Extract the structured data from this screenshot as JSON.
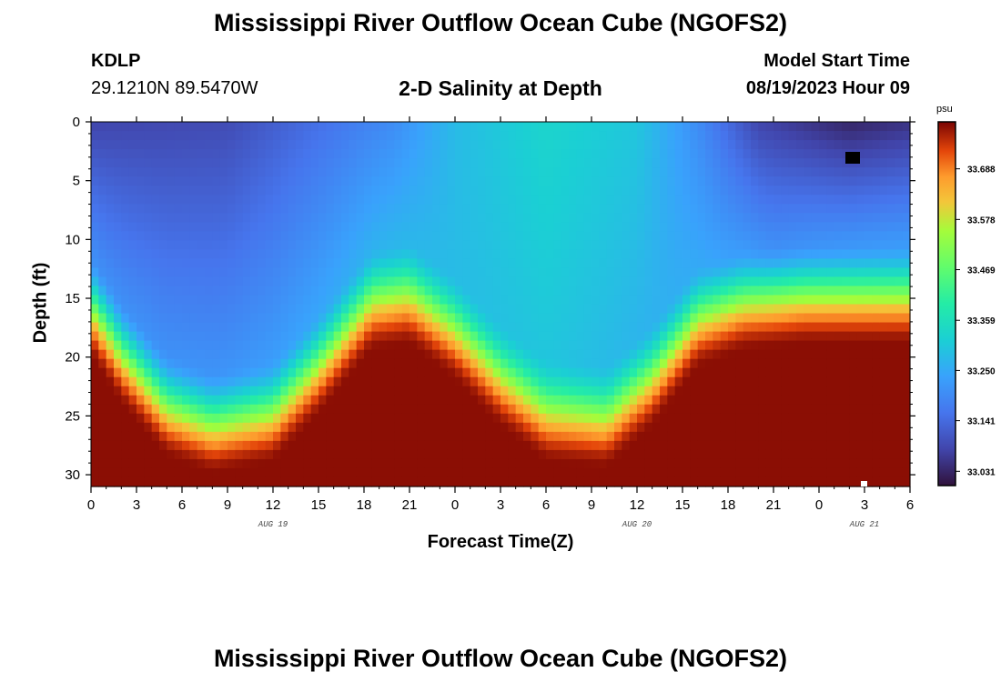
{
  "title": "Mississippi River Outflow Ocean Cube (NGOFS2)",
  "station": {
    "name": "KDLP",
    "coords": "29.1210N  89.5470W"
  },
  "subtitle": "2-D Salinity at Depth",
  "model_start": {
    "label": "Model Start Time",
    "value": "08/19/2023 Hour 09"
  },
  "bottom_title": "Mississippi River Outflow Ocean Cube (NGOFS2)",
  "chart_data": {
    "type": "heatmap",
    "title": "2-D Salinity at Depth",
    "xlabel": "Forecast Time(Z)",
    "ylabel": "Depth (ft)",
    "x_hours_range": [
      0,
      54
    ],
    "x_ticks": [
      "0",
      "3",
      "6",
      "9",
      "12",
      "15",
      "18",
      "21",
      "0",
      "3",
      "6",
      "9",
      "12",
      "15",
      "18",
      "21",
      "0",
      "3",
      "6"
    ],
    "x_dates": [
      {
        "label": "AUG 19",
        "hour": 12
      },
      {
        "label": "AUG 20",
        "hour": 36
      },
      {
        "label": "AUG 21",
        "hour": 51
      }
    ],
    "ylim": [
      0,
      31
    ],
    "y_ticks": [
      "0",
      "5",
      "10",
      "15",
      "20",
      "25",
      "30"
    ],
    "colorbar": {
      "unit": "psu",
      "range": [
        33.0,
        33.79
      ],
      "labels": [
        "33.688",
        "33.578",
        "33.469",
        "33.359",
        "33.250",
        "33.141",
        "33.031"
      ]
    },
    "interface_depth_ft": [
      {
        "hour": 0,
        "depth": 15
      },
      {
        "hour": 2,
        "depth": 19
      },
      {
        "hour": 5,
        "depth": 23.5
      },
      {
        "hour": 8,
        "depth": 25
      },
      {
        "hour": 12,
        "depth": 24
      },
      {
        "hour": 15,
        "depth": 20
      },
      {
        "hour": 18.5,
        "depth": 14.5
      },
      {
        "hour": 21,
        "depth": 14
      },
      {
        "hour": 24,
        "depth": 17
      },
      {
        "hour": 27,
        "depth": 21
      },
      {
        "hour": 30,
        "depth": 24
      },
      {
        "hour": 34,
        "depth": 24.5
      },
      {
        "hour": 37,
        "depth": 21
      },
      {
        "hour": 40,
        "depth": 16
      },
      {
        "hour": 43,
        "depth": 14.5
      },
      {
        "hour": 47,
        "depth": 14
      },
      {
        "hour": 51,
        "depth": 14
      },
      {
        "hour": 54,
        "depth": 14
      }
    ],
    "surface_salinity": [
      {
        "hour": 0,
        "value": 33.08
      },
      {
        "hour": 9,
        "value": 33.09
      },
      {
        "hour": 15,
        "value": 33.15
      },
      {
        "hour": 20,
        "value": 33.2
      },
      {
        "hour": 24,
        "value": 33.28
      },
      {
        "hour": 30,
        "value": 33.33
      },
      {
        "hour": 36,
        "value": 33.3
      },
      {
        "hour": 40,
        "value": 33.2
      },
      {
        "hour": 44,
        "value": 33.08
      },
      {
        "hour": 50,
        "value": 33.03
      },
      {
        "hour": 54,
        "value": 33.05
      }
    ],
    "mid_salinity": [
      {
        "hour": 0,
        "value": 33.2
      },
      {
        "hour": 9,
        "value": 33.21
      },
      {
        "hour": 20,
        "value": 33.27
      },
      {
        "hour": 30,
        "value": 33.3
      },
      {
        "hour": 40,
        "value": 33.25
      },
      {
        "hour": 45,
        "value": 33.2
      },
      {
        "hour": 54,
        "value": 33.22
      }
    ],
    "bottom_salinity": 33.78
  }
}
